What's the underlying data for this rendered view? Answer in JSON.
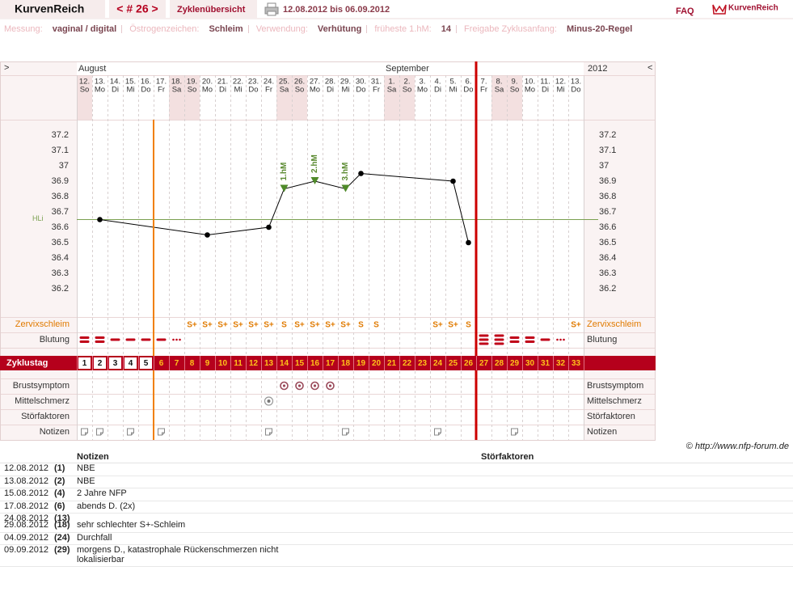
{
  "header": {
    "app": "KurvenReich",
    "cycle_nav": "< # 26 >",
    "overview": "Zyklenübersicht",
    "range": "12.08.2012 bis 06.09.2012",
    "faq": "FAQ",
    "logo": "KurvenReich"
  },
  "settings": [
    {
      "label": "Messung:",
      "value": "vaginal / digital"
    },
    {
      "label": "Östrogenzeichen:",
      "value": "Schleim"
    },
    {
      "label": "Verwendung:",
      "value": "Verhütung"
    },
    {
      "label": "früheste 1.hM:",
      "value": "14"
    },
    {
      "label": "Freigabe Zyklusanfang:",
      "value": "Minus-20-Regel"
    }
  ],
  "calendar": {
    "nav_left": ">",
    "nav_right": "<",
    "year": "2012",
    "months": [
      "August",
      "September"
    ],
    "days": [
      {
        "date": "12.",
        "weekday": "So"
      },
      {
        "date": "13.",
        "weekday": "Mo"
      },
      {
        "date": "14.",
        "weekday": "Di"
      },
      {
        "date": "15.",
        "weekday": "Mi"
      },
      {
        "date": "16.",
        "weekday": "Do"
      },
      {
        "date": "17.",
        "weekday": "Fr"
      },
      {
        "date": "18.",
        "weekday": "Sa"
      },
      {
        "date": "19.",
        "weekday": "So"
      },
      {
        "date": "20.",
        "weekday": "Mo"
      },
      {
        "date": "21.",
        "weekday": "Di"
      },
      {
        "date": "22.",
        "weekday": "Mi"
      },
      {
        "date": "23.",
        "weekday": "Do"
      },
      {
        "date": "24.",
        "weekday": "Fr"
      },
      {
        "date": "25.",
        "weekday": "Sa"
      },
      {
        "date": "26.",
        "weekday": "So"
      },
      {
        "date": "27.",
        "weekday": "Mo"
      },
      {
        "date": "28.",
        "weekday": "Di"
      },
      {
        "date": "29.",
        "weekday": "Mi"
      },
      {
        "date": "30.",
        "weekday": "Do"
      },
      {
        "date": "31.",
        "weekday": "Fr"
      },
      {
        "date": "1.",
        "weekday": "Sa"
      },
      {
        "date": "2.",
        "weekday": "So"
      },
      {
        "date": "3.",
        "weekday": "Mo"
      },
      {
        "date": "4.",
        "weekday": "Di"
      },
      {
        "date": "5.",
        "weekday": "Mi"
      },
      {
        "date": "6.",
        "weekday": "Do"
      },
      {
        "date": "7.",
        "weekday": "Fr"
      },
      {
        "date": "8.",
        "weekday": "Sa"
      },
      {
        "date": "9.",
        "weekday": "So"
      },
      {
        "date": "10.",
        "weekday": "Mo"
      },
      {
        "date": "11.",
        "weekday": "Di"
      },
      {
        "date": "12.",
        "weekday": "Mi"
      },
      {
        "date": "13.",
        "weekday": "Do"
      }
    ]
  },
  "chart_data": {
    "type": "line",
    "color": "#000000",
    "x": [
      2,
      9,
      13,
      14,
      16,
      18,
      19,
      25,
      26
    ],
    "values": [
      36.65,
      36.55,
      36.6,
      36.85,
      36.9,
      36.85,
      36.95,
      36.9,
      36.5
    ],
    "xlim": [
      0.5,
      33.5
    ],
    "ylim": [
      36.0,
      37.3
    ],
    "yticks": [
      36.2,
      36.3,
      36.4,
      36.5,
      36.6,
      36.7,
      36.8,
      36.9,
      37,
      37.1,
      37.2
    ],
    "coverline": {
      "label": "HLi",
      "value": 36.65,
      "color": "#7aa050"
    },
    "annotations": [
      {
        "x": 14,
        "label": "1.hM"
      },
      {
        "x": 16,
        "label": "2.hM"
      },
      {
        "x": 18,
        "label": "3.hM"
      }
    ],
    "infertile_until_day": 5,
    "cycle_length": 26
  },
  "rows": {
    "zervix": {
      "label": "Zervixschleim",
      "values": [
        null,
        null,
        null,
        null,
        null,
        null,
        null,
        "S+",
        "S+",
        "S+",
        "S+",
        "S+",
        "S+",
        "S",
        "S+",
        "S+",
        "S+",
        "S+",
        "S",
        "S",
        null,
        null,
        null,
        "S+",
        "S+",
        "S",
        null,
        null,
        null,
        null,
        null,
        null,
        "S+"
      ]
    },
    "blutung": {
      "label": "Blutung",
      "values": [
        2,
        2,
        1,
        1,
        1,
        1,
        0,
        null,
        null,
        null,
        null,
        null,
        null,
        null,
        null,
        null,
        null,
        null,
        null,
        null,
        null,
        null,
        null,
        null,
        null,
        null,
        3,
        3,
        2,
        2,
        1,
        0,
        null
      ]
    },
    "zyklustag": {
      "label": "Zyklustag",
      "values": [
        1,
        2,
        3,
        4,
        5,
        6,
        7,
        8,
        9,
        10,
        11,
        12,
        13,
        14,
        15,
        16,
        17,
        18,
        19,
        20,
        21,
        22,
        23,
        24,
        25,
        26,
        27,
        28,
        29,
        30,
        31,
        32,
        33
      ]
    },
    "brust": {
      "label": "Brustsymptom",
      "days": [
        14,
        15,
        16,
        17
      ]
    },
    "mittel": {
      "label": "Mittelschmerz",
      "days": [
        13
      ]
    },
    "stoer": {
      "label": "Störfaktoren",
      "days": []
    },
    "notizen": {
      "label": "Notizen",
      "days": [
        1,
        2,
        4,
        6,
        13,
        18,
        24,
        29
      ]
    }
  },
  "copyright": "© http://www.nfp-forum.de",
  "notes_table": {
    "headers": [
      "Notizen",
      "Störfaktoren"
    ],
    "rows": [
      {
        "date": "12.08.2012",
        "day": "(1)",
        "note": "NBE"
      },
      {
        "date": "13.08.2012",
        "day": "(2)",
        "note": "NBE"
      },
      {
        "date": "15.08.2012",
        "day": "(4)",
        "note": "2 Jahre NFP"
      },
      {
        "date": "17.08.2012",
        "day": "(6)",
        "note": "abends D. (2x)"
      },
      {
        "date": "24.08.2012",
        "day": "(13)",
        "note": null
      },
      {
        "date": "29.08.2012",
        "day": "(18)",
        "note": "sehr schlechter S+-Schleim"
      },
      {
        "date": "04.09.2012",
        "day": "(24)",
        "note": "Durchfall"
      },
      {
        "date": "09.09.2012",
        "day": "(29)",
        "note": "morgens D., katastrophale Rückenschmerzen nicht lokalisierbar"
      }
    ]
  }
}
